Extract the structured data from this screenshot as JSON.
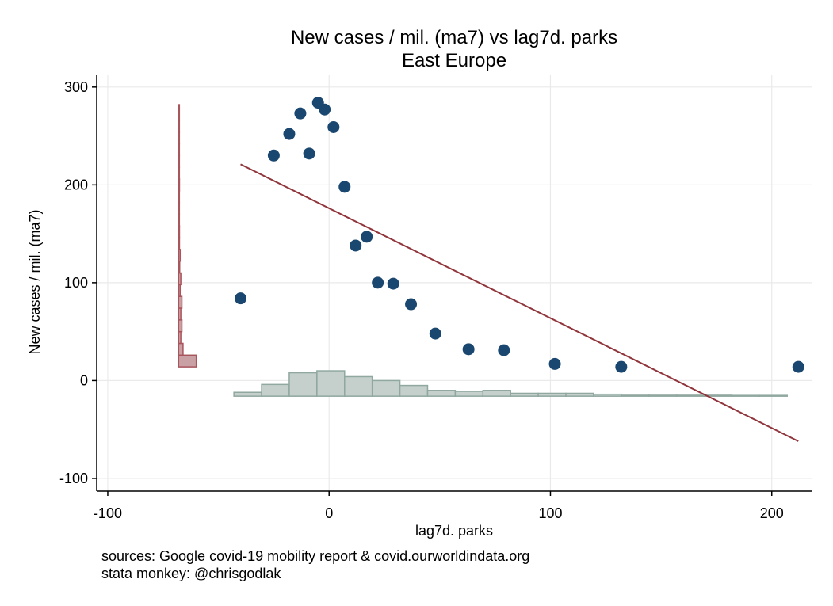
{
  "chart_data": {
    "type": "scatter",
    "title": "New cases / mil. (ma7) vs lag7d. parks",
    "subtitle": "East Europe",
    "xlabel": "lag7d. parks",
    "ylabel": "New cases / mil. (ma7)",
    "xlim": [
      -105,
      218
    ],
    "ylim": [
      -113,
      312
    ],
    "x_ticks": [
      -100,
      0,
      100,
      200
    ],
    "y_ticks": [
      -100,
      0,
      100,
      200,
      300
    ],
    "x_tick_labels": [
      "-100",
      "0",
      "100",
      "200"
    ],
    "y_tick_labels": [
      "-100",
      "0",
      "100",
      "200",
      "300"
    ],
    "grid": true,
    "notes": [
      "sources: Google covid-19 mobility report & covid.ourworldindata.org",
      "stata monkey: @chrisgodlak"
    ],
    "colors": {
      "points": "#1a476f",
      "fit_line": "#90353b",
      "y_hist_fill": "#c9a0a3",
      "y_hist_edge": "#a8555c",
      "x_hist_fill": "#c5d0cc",
      "x_hist_edge": "#90a8a0",
      "grid": "#eaeaea"
    },
    "points": [
      {
        "x": -40,
        "y": 84
      },
      {
        "x": -25,
        "y": 230
      },
      {
        "x": -18,
        "y": 252
      },
      {
        "x": -13,
        "y": 273
      },
      {
        "x": -9,
        "y": 232
      },
      {
        "x": -5,
        "y": 284
      },
      {
        "x": -2,
        "y": 277
      },
      {
        "x": 2,
        "y": 259
      },
      {
        "x": 7,
        "y": 198
      },
      {
        "x": 12,
        "y": 138
      },
      {
        "x": 17,
        "y": 147
      },
      {
        "x": 22,
        "y": 100
      },
      {
        "x": 29,
        "y": 99
      },
      {
        "x": 37,
        "y": 78
      },
      {
        "x": 48,
        "y": 48
      },
      {
        "x": 63,
        "y": 32
      },
      {
        "x": 79,
        "y": 31
      },
      {
        "x": 102,
        "y": 17
      },
      {
        "x": 132,
        "y": 14
      },
      {
        "x": 212,
        "y": 14
      }
    ],
    "fit_line": {
      "x": [
        -40,
        212
      ],
      "y": [
        221,
        -62
      ]
    },
    "x_histogram": {
      "baseline": -16,
      "bins": [
        {
          "x0": -43,
          "x1": -30.5,
          "top": -12
        },
        {
          "x0": -30.5,
          "x1": -18,
          "top": -4
        },
        {
          "x0": -18,
          "x1": -5.5,
          "top": 8
        },
        {
          "x0": -5.5,
          "x1": 7,
          "top": 10
        },
        {
          "x0": 7,
          "x1": 19.5,
          "top": 4
        },
        {
          "x0": 19.5,
          "x1": 32,
          "top": 0
        },
        {
          "x0": 32,
          "x1": 44.5,
          "top": -5
        },
        {
          "x0": 44.5,
          "x1": 57,
          "top": -10
        },
        {
          "x0": 57,
          "x1": 69.5,
          "top": -11
        },
        {
          "x0": 69.5,
          "x1": 82,
          "top": -10
        },
        {
          "x0": 82,
          "x1": 94.5,
          "top": -13
        },
        {
          "x0": 94.5,
          "x1": 107,
          "top": -13
        },
        {
          "x0": 107,
          "x1": 119.5,
          "top": -13
        },
        {
          "x0": 119.5,
          "x1": 132,
          "top": -14
        },
        {
          "x0": 132,
          "x1": 144.5,
          "top": -15
        },
        {
          "x0": 144.5,
          "x1": 157,
          "top": -15
        },
        {
          "x0": 157,
          "x1": 169.5,
          "top": -15
        },
        {
          "x0": 169.5,
          "x1": 182,
          "top": -15
        },
        {
          "x0": 182,
          "x1": 194.5,
          "top": -15.5
        },
        {
          "x0": 194.5,
          "x1": 207,
          "top": -15.5
        }
      ]
    },
    "y_histogram": {
      "baseline": -68,
      "bins": [
        {
          "y0": 14,
          "y1": 26,
          "right": -60
        },
        {
          "y0": 26,
          "y1": 38,
          "right": -66
        },
        {
          "y0": 38,
          "y1": 50,
          "right": -67
        },
        {
          "y0": 50,
          "y1": 62,
          "right": -66.5
        },
        {
          "y0": 62,
          "y1": 74,
          "right": -67
        },
        {
          "y0": 74,
          "y1": 86,
          "right": -66.5
        },
        {
          "y0": 86,
          "y1": 98,
          "right": -67.3
        },
        {
          "y0": 98,
          "y1": 110,
          "right": -67
        },
        {
          "y0": 110,
          "y1": 122,
          "right": -67.5
        },
        {
          "y0": 122,
          "y1": 134,
          "right": -67.3
        },
        {
          "y0": 134,
          "y1": 146,
          "right": -67.6
        },
        {
          "y0": 146,
          "y1": 158,
          "right": -67.6
        },
        {
          "y0": 158,
          "y1": 170,
          "right": -67.7
        },
        {
          "y0": 170,
          "y1": 182,
          "right": -67.8
        },
        {
          "y0": 182,
          "y1": 194,
          "right": -67.8
        },
        {
          "y0": 194,
          "y1": 206,
          "right": -67.6
        },
        {
          "y0": 206,
          "y1": 218,
          "right": -67.8
        },
        {
          "y0": 218,
          "y1": 230,
          "right": -67.7
        },
        {
          "y0": 230,
          "y1": 242,
          "right": -67.8
        },
        {
          "y0": 242,
          "y1": 254,
          "right": -67.7
        },
        {
          "y0": 254,
          "y1": 266,
          "right": -67.8
        },
        {
          "y0": 266,
          "y1": 282,
          "right": -67.7
        }
      ]
    }
  }
}
